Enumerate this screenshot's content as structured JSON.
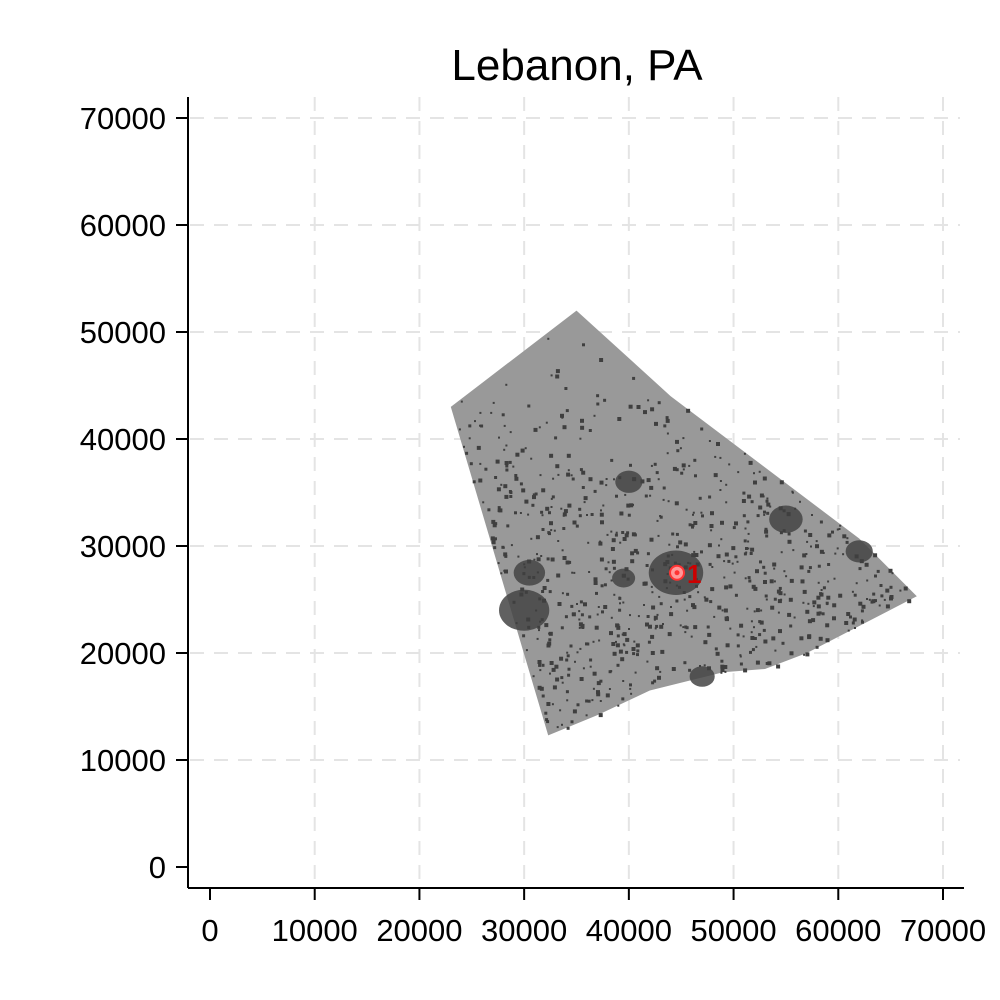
{
  "chart_data": {
    "type": "scatter",
    "title": "Lebanon, PA",
    "xlabel": "",
    "ylabel": "",
    "xlim": [
      -2000,
      72000
    ],
    "ylim": [
      -2000,
      72000
    ],
    "x_ticks": [
      0,
      10000,
      20000,
      30000,
      40000,
      50000,
      60000,
      70000
    ],
    "y_ticks": [
      0,
      10000,
      20000,
      30000,
      40000,
      50000,
      60000,
      70000
    ],
    "x_tick_labels": [
      "0",
      "10000",
      "20000",
      "30000",
      "40000",
      "50000",
      "60000",
      "70000"
    ],
    "y_tick_labels": [
      "0",
      "10000",
      "20000",
      "30000",
      "40000",
      "50000",
      "60000",
      "70000"
    ],
    "grid": true,
    "region": {
      "boundary": [
        [
          35000,
          52000
        ],
        [
          23000,
          43000
        ],
        [
          32300,
          12300
        ],
        [
          37000,
          14200
        ],
        [
          42000,
          16500
        ],
        [
          49000,
          18200
        ],
        [
          53000,
          18500
        ],
        [
          57000,
          20000
        ],
        [
          67500,
          25300
        ],
        [
          62000,
          30700
        ],
        [
          44000,
          44000
        ]
      ],
      "fill_color": "#999999",
      "cluster_color": "#444444",
      "clusters": [
        {
          "x": 44500,
          "y": 27500,
          "r": 2600
        },
        {
          "x": 30000,
          "y": 24000,
          "r": 2400
        },
        {
          "x": 30500,
          "y": 27500,
          "r": 1500
        },
        {
          "x": 55000,
          "y": 32500,
          "r": 1600
        },
        {
          "x": 62000,
          "y": 29500,
          "r": 1300
        },
        {
          "x": 40000,
          "y": 36000,
          "r": 1300
        },
        {
          "x": 47000,
          "y": 17800,
          "r": 1200
        },
        {
          "x": 39500,
          "y": 27000,
          "r": 1100
        }
      ]
    },
    "points": [
      {
        "x": 44600,
        "y": 27500,
        "label": "1",
        "color": "#ff3333"
      }
    ]
  }
}
